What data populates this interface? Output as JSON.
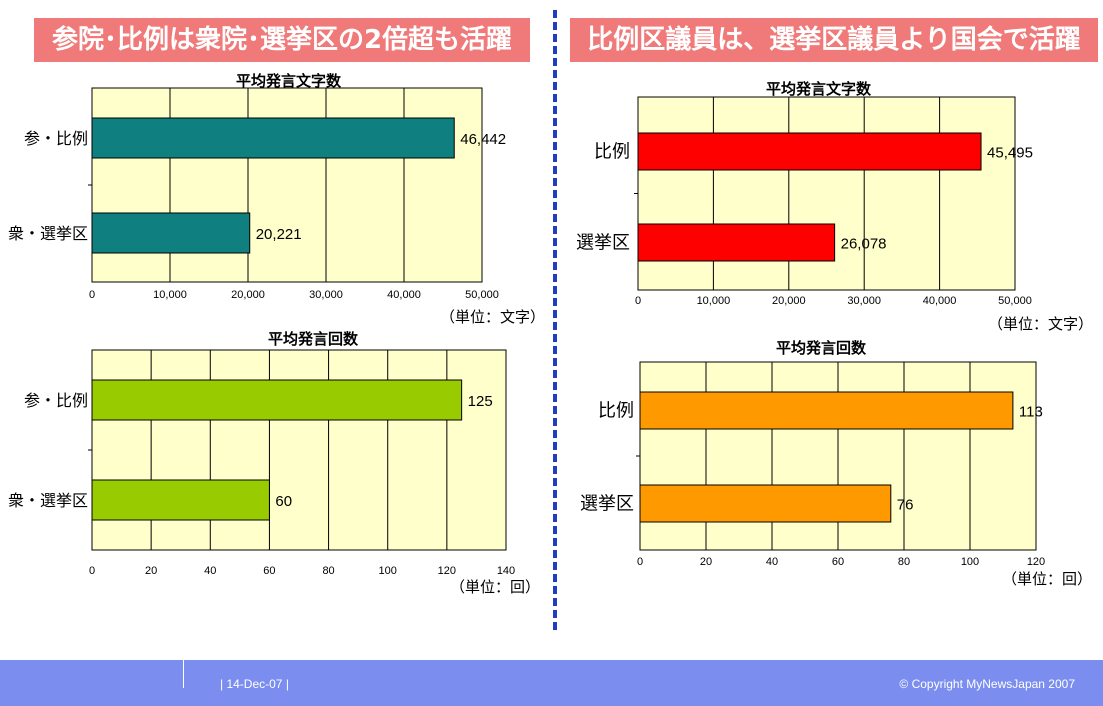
{
  "banners": {
    "left": "参院･比例は衆院･選挙区の2倍超も活躍",
    "right": "比例区議員は、選挙区議員より国会で活躍"
  },
  "footer": {
    "date": "| 14-Dec-07 |",
    "copyright": "© Copyright MyNewsJapan 2007"
  },
  "chart_data": [
    {
      "type": "bar",
      "orientation": "horizontal",
      "title": "平均発言文字数",
      "unit_label": "（単位：文字）",
      "categories": [
        "参・比例",
        "衆・選挙区"
      ],
      "values": [
        46442,
        20221
      ],
      "value_labels": [
        "46,442",
        "20,221"
      ],
      "xlim": [
        0,
        50000
      ],
      "xticks": [
        "0",
        "10,000",
        "20,000",
        "30,000",
        "40,000",
        "50,000"
      ],
      "bar_color": "#0f7f7f",
      "grid": true
    },
    {
      "type": "bar",
      "orientation": "horizontal",
      "title": "平均発言回数",
      "unit_label": "（単位：回）",
      "categories": [
        "参・比例",
        "衆・選挙区"
      ],
      "values": [
        125,
        60
      ],
      "value_labels": [
        "125",
        "60"
      ],
      "xlim": [
        0,
        140
      ],
      "xticks": [
        "0",
        "20",
        "40",
        "60",
        "80",
        "100",
        "120",
        "140"
      ],
      "bar_color": "#99cc00",
      "grid": true
    },
    {
      "type": "bar",
      "orientation": "horizontal",
      "title": "平均発言文字数",
      "unit_label": "（単位：文字）",
      "categories": [
        "比例",
        "選挙区"
      ],
      "values": [
        45495,
        26078
      ],
      "value_labels": [
        "45,495",
        "26,078"
      ],
      "xlim": [
        0,
        50000
      ],
      "xticks": [
        "0",
        "10,000",
        "20,000",
        "30,000",
        "40,000",
        "50,000"
      ],
      "bar_color": "#ff0000",
      "grid": true
    },
    {
      "type": "bar",
      "orientation": "horizontal",
      "title": "平均発言回数",
      "unit_label": "（単位：回）",
      "categories": [
        "比例",
        "選挙区"
      ],
      "values": [
        113,
        76
      ],
      "value_labels": [
        "113",
        "76"
      ],
      "xlim": [
        0,
        120
      ],
      "xticks": [
        "0",
        "20",
        "40",
        "60",
        "80",
        "100",
        "120"
      ],
      "bar_color": "#ff9900",
      "grid": true
    }
  ]
}
